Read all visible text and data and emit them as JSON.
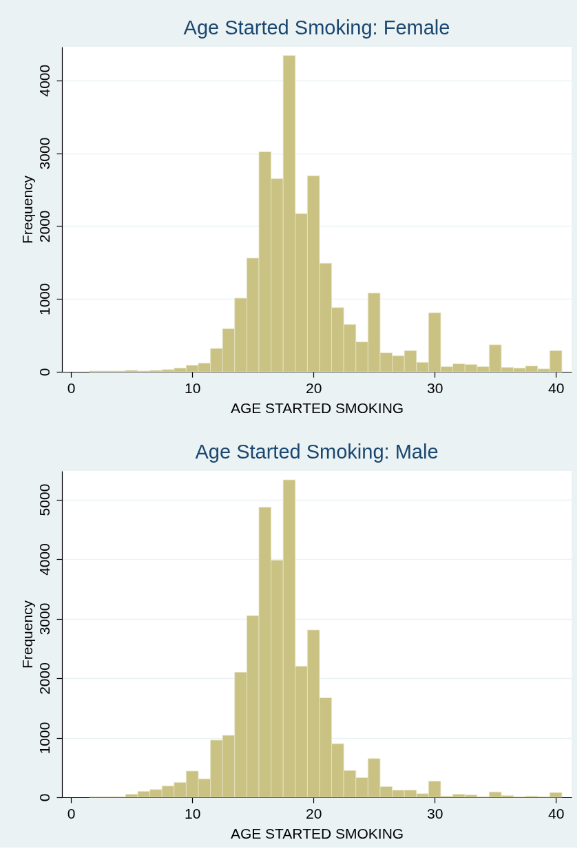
{
  "chart_data": [
    {
      "type": "histogram",
      "title": "Age Started Smoking: Female",
      "xlabel": "AGE STARTED SMOKING",
      "ylabel": "Frequency",
      "color": "#cac283",
      "bins": [
        1.5,
        2.5,
        3.5,
        4.5,
        5.5,
        6.5,
        7.5,
        8.5,
        9.5,
        10.5,
        11.5,
        12.5,
        13.5,
        14.5,
        15.5,
        16.5,
        17.5,
        18.5,
        19.5,
        20.5,
        21.5,
        22.5,
        23.5,
        24.5,
        25.5,
        26.5,
        27.5,
        28.5,
        29.5,
        30.5,
        31.5,
        32.5,
        33.5,
        34.5,
        35.5,
        36.5,
        37.5,
        38.5,
        39.5,
        40.5
      ],
      "values": [
        10,
        10,
        10,
        20,
        10,
        20,
        30,
        50,
        90,
        120,
        320,
        590,
        1010,
        1560,
        3020,
        2650,
        4340,
        2170,
        2690,
        1490,
        880,
        650,
        410,
        1080,
        260,
        220,
        290,
        130,
        810,
        70,
        110,
        100,
        70,
        370,
        60,
        50,
        80,
        40,
        290
      ],
      "xlim": [
        -0.75,
        41.3
      ],
      "ylim": [
        0,
        4460
      ],
      "xticks": [
        0,
        10,
        20,
        30,
        40
      ],
      "yticks": [
        0,
        1000,
        2000,
        3000,
        4000
      ],
      "grid": "y"
    },
    {
      "type": "histogram",
      "title": "Age Started Smoking: Male",
      "xlabel": "AGE STARTED SMOKING",
      "ylabel": "Frequency",
      "color": "#cac283",
      "bins": [
        1.5,
        2.5,
        3.5,
        4.5,
        5.5,
        6.5,
        7.5,
        8.5,
        9.5,
        10.5,
        11.5,
        12.5,
        13.5,
        14.5,
        15.5,
        16.5,
        17.5,
        18.5,
        19.5,
        20.5,
        21.5,
        22.5,
        23.5,
        24.5,
        25.5,
        26.5,
        27.5,
        28.5,
        29.5,
        30.5,
        31.5,
        32.5,
        33.5,
        34.5,
        35.5,
        36.5,
        37.5,
        38.5,
        39.5,
        40.5
      ],
      "values": [
        10,
        10,
        10,
        50,
        100,
        130,
        190,
        250,
        440,
        310,
        960,
        1040,
        2100,
        3050,
        4870,
        3980,
        5330,
        2200,
        2810,
        1670,
        900,
        450,
        330,
        650,
        180,
        120,
        120,
        60,
        270,
        20,
        50,
        40,
        10,
        90,
        30,
        10,
        20,
        10,
        80
      ],
      "xlim": [
        -0.75,
        41.3
      ],
      "ylim": [
        0,
        5480
      ],
      "xticks": [
        0,
        10,
        20,
        30,
        40
      ],
      "yticks": [
        0,
        1000,
        2000,
        3000,
        4000,
        5000
      ],
      "grid": "y"
    }
  ]
}
